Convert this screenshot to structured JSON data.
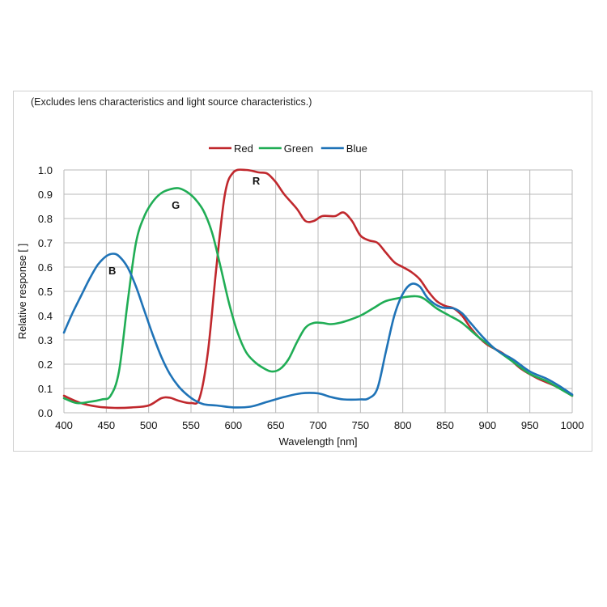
{
  "note": "(Excludes lens characteristics and light source characteristics.)",
  "chart_data": {
    "type": "line",
    "xlabel": "Wavelength [nm]",
    "ylabel": "Relative response [ ]",
    "xlim": [
      400,
      1000
    ],
    "ylim": [
      0,
      1.0
    ],
    "x_ticks": [
      "400",
      "450",
      "500",
      "550",
      "600",
      "650",
      "700",
      "750",
      "800",
      "850",
      "900",
      "950",
      "1000"
    ],
    "y_ticks": [
      "0.0",
      "0.1",
      "0.2",
      "0.3",
      "0.4",
      "0.5",
      "0.6",
      "0.7",
      "0.8",
      "0.9",
      "1.0"
    ],
    "grid": true,
    "legend_position": "top-center",
    "series": [
      {
        "name": "Red",
        "color": "#c0282d",
        "label": "R",
        "label_at": [
          627,
          0.94
        ],
        "points": [
          [
            400,
            0.07
          ],
          [
            420,
            0.04
          ],
          [
            440,
            0.025
          ],
          [
            460,
            0.02
          ],
          [
            480,
            0.022
          ],
          [
            500,
            0.03
          ],
          [
            515,
            0.06
          ],
          [
            525,
            0.062
          ],
          [
            535,
            0.05
          ],
          [
            550,
            0.04
          ],
          [
            560,
            0.06
          ],
          [
            570,
            0.25
          ],
          [
            580,
            0.6
          ],
          [
            590,
            0.9
          ],
          [
            600,
            0.99
          ],
          [
            615,
            1.0
          ],
          [
            630,
            0.99
          ],
          [
            640,
            0.985
          ],
          [
            650,
            0.95
          ],
          [
            660,
            0.9
          ],
          [
            675,
            0.84
          ],
          [
            685,
            0.79
          ],
          [
            695,
            0.79
          ],
          [
            705,
            0.81
          ],
          [
            720,
            0.81
          ],
          [
            730,
            0.825
          ],
          [
            740,
            0.79
          ],
          [
            750,
            0.73
          ],
          [
            760,
            0.71
          ],
          [
            770,
            0.7
          ],
          [
            780,
            0.66
          ],
          [
            790,
            0.62
          ],
          [
            800,
            0.6
          ],
          [
            810,
            0.58
          ],
          [
            820,
            0.55
          ],
          [
            830,
            0.5
          ],
          [
            840,
            0.46
          ],
          [
            850,
            0.44
          ],
          [
            860,
            0.43
          ],
          [
            870,
            0.4
          ],
          [
            880,
            0.35
          ],
          [
            890,
            0.31
          ],
          [
            900,
            0.28
          ],
          [
            920,
            0.24
          ],
          [
            940,
            0.18
          ],
          [
            960,
            0.14
          ],
          [
            980,
            0.11
          ],
          [
            1000,
            0.07
          ]
        ]
      },
      {
        "name": "Green",
        "color": "#20ad55",
        "label": "G",
        "label_at": [
          532,
          0.84
        ],
        "points": [
          [
            400,
            0.06
          ],
          [
            415,
            0.04
          ],
          [
            430,
            0.045
          ],
          [
            445,
            0.055
          ],
          [
            455,
            0.07
          ],
          [
            465,
            0.17
          ],
          [
            475,
            0.45
          ],
          [
            485,
            0.7
          ],
          [
            495,
            0.81
          ],
          [
            505,
            0.87
          ],
          [
            515,
            0.905
          ],
          [
            525,
            0.92
          ],
          [
            535,
            0.925
          ],
          [
            545,
            0.91
          ],
          [
            555,
            0.88
          ],
          [
            565,
            0.83
          ],
          [
            575,
            0.74
          ],
          [
            585,
            0.6
          ],
          [
            595,
            0.45
          ],
          [
            605,
            0.33
          ],
          [
            615,
            0.25
          ],
          [
            625,
            0.21
          ],
          [
            635,
            0.185
          ],
          [
            645,
            0.17
          ],
          [
            655,
            0.18
          ],
          [
            665,
            0.22
          ],
          [
            675,
            0.29
          ],
          [
            685,
            0.35
          ],
          [
            695,
            0.37
          ],
          [
            705,
            0.37
          ],
          [
            715,
            0.365
          ],
          [
            725,
            0.37
          ],
          [
            735,
            0.38
          ],
          [
            750,
            0.4
          ],
          [
            765,
            0.43
          ],
          [
            780,
            0.46
          ],
          [
            800,
            0.475
          ],
          [
            815,
            0.48
          ],
          [
            825,
            0.47
          ],
          [
            840,
            0.43
          ],
          [
            855,
            0.4
          ],
          [
            870,
            0.37
          ],
          [
            890,
            0.31
          ],
          [
            910,
            0.26
          ],
          [
            930,
            0.21
          ],
          [
            950,
            0.16
          ],
          [
            970,
            0.13
          ],
          [
            985,
            0.1
          ],
          [
            1000,
            0.07
          ]
        ]
      },
      {
        "name": "Blue",
        "color": "#1f73b7",
        "label": "B",
        "label_at": [
          457,
          0.57
        ],
        "points": [
          [
            400,
            0.33
          ],
          [
            410,
            0.41
          ],
          [
            420,
            0.48
          ],
          [
            430,
            0.55
          ],
          [
            440,
            0.61
          ],
          [
            450,
            0.645
          ],
          [
            458,
            0.655
          ],
          [
            465,
            0.645
          ],
          [
            475,
            0.6
          ],
          [
            485,
            0.52
          ],
          [
            495,
            0.42
          ],
          [
            505,
            0.32
          ],
          [
            515,
            0.23
          ],
          [
            525,
            0.16
          ],
          [
            535,
            0.11
          ],
          [
            545,
            0.075
          ],
          [
            555,
            0.05
          ],
          [
            565,
            0.035
          ],
          [
            580,
            0.03
          ],
          [
            600,
            0.022
          ],
          [
            620,
            0.025
          ],
          [
            640,
            0.045
          ],
          [
            660,
            0.065
          ],
          [
            680,
            0.08
          ],
          [
            700,
            0.08
          ],
          [
            715,
            0.065
          ],
          [
            730,
            0.055
          ],
          [
            750,
            0.055
          ],
          [
            760,
            0.06
          ],
          [
            770,
            0.1
          ],
          [
            780,
            0.25
          ],
          [
            790,
            0.4
          ],
          [
            800,
            0.49
          ],
          [
            810,
            0.53
          ],
          [
            820,
            0.52
          ],
          [
            830,
            0.47
          ],
          [
            845,
            0.435
          ],
          [
            860,
            0.43
          ],
          [
            870,
            0.41
          ],
          [
            880,
            0.37
          ],
          [
            895,
            0.31
          ],
          [
            910,
            0.26
          ],
          [
            930,
            0.22
          ],
          [
            950,
            0.17
          ],
          [
            970,
            0.14
          ],
          [
            985,
            0.11
          ],
          [
            1000,
            0.075
          ]
        ]
      }
    ]
  }
}
